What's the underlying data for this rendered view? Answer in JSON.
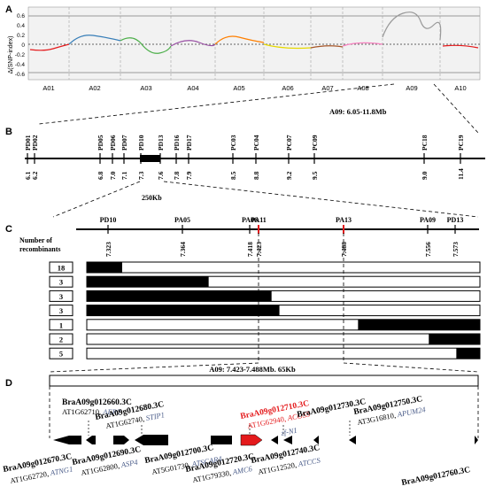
{
  "panelA": {
    "label": "A",
    "ylabel": "Δ(SNP-index)",
    "yticks": [
      "0.6",
      "0.4",
      "0.2",
      "0",
      "-0.2",
      "-0.4",
      "-0.6"
    ],
    "chromosomes": [
      "A01",
      "A02",
      "A03",
      "A04",
      "A05",
      "A06",
      "A07",
      "A08",
      "A09",
      "A10"
    ],
    "region_label": "A09: 6.05-11.8Mb"
  },
  "panelB": {
    "label": "B",
    "markers": [
      {
        "name": "PD01",
        "pos": "6.1"
      },
      {
        "name": "PD02",
        "pos": "6.2"
      },
      {
        "name": "PD05",
        "pos": "6.8"
      },
      {
        "name": "PD06",
        "pos": "7.0"
      },
      {
        "name": "PD07",
        "pos": "7.1"
      },
      {
        "name": "PD10",
        "pos": "7.3"
      },
      {
        "name": "PD13",
        "pos": "7.6"
      },
      {
        "name": "PD16",
        "pos": "7.8"
      },
      {
        "name": "PD17",
        "pos": "7.9"
      },
      {
        "name": "PC03",
        "pos": "8.5"
      },
      {
        "name": "PC04",
        "pos": "8.8"
      },
      {
        "name": "PC07",
        "pos": "9.2"
      },
      {
        "name": "PC09",
        "pos": "9.5"
      },
      {
        "name": "PC18",
        "pos": "9.0"
      },
      {
        "name": "PC19",
        "pos": "11.4"
      }
    ],
    "scale_label": "250Kb"
  },
  "panelC": {
    "label": "C",
    "markers": [
      {
        "name": "PD10",
        "pos": "7.323"
      },
      {
        "name": "PA05",
        "pos": "7.364"
      },
      {
        "name": "PA06",
        "pos": "7.418"
      },
      {
        "name": "PA11",
        "pos": "7.423"
      },
      {
        "name": "PA13",
        "pos": "7.488"
      },
      {
        "name": "PA09",
        "pos": "7.556"
      },
      {
        "name": "PD13",
        "pos": "7.573"
      }
    ],
    "recombinant_header": [
      "Number of",
      "recombinants"
    ],
    "recombinants": [
      {
        "count": "18",
        "fill": 0.09
      },
      {
        "count": "3",
        "fill": 0.31
      },
      {
        "count": "3",
        "fill": 0.47
      },
      {
        "count": "3",
        "fill": 0.49
      },
      {
        "count": "1",
        "fill": 0.31
      },
      {
        "count": "2",
        "fill": 0.13
      },
      {
        "count": "5",
        "fill": 0.06
      }
    ]
  },
  "panelD": {
    "label": "D",
    "region_label": "A09: 7.423-7.488Mb. 65Kb",
    "genes_top": [
      {
        "id": "BraA09g012660.3C",
        "at": "AT1G62710,",
        "name": "AEP2"
      },
      {
        "id": "BraA09g012680.3C",
        "at": "AT1G62740,",
        "name": "STIP1"
      },
      {
        "id": "BraA09g012710.3C",
        "at": "AT1G62940,",
        "name": "ACOS5"
      },
      {
        "id": "BraA09g012730.3C",
        "at": "",
        "name": "zf-N1"
      },
      {
        "id": "BraA09g012750.3C",
        "at": "AT3G16810,",
        "name": "APUM24"
      }
    ],
    "genes_bottom": [
      {
        "id": "BraA09g012670.3C",
        "at": "AT1G62720,",
        "name": "ATNG1"
      },
      {
        "id": "BraA09g012690.3C",
        "at": "AT1G62800,",
        "name": "ASP4"
      },
      {
        "id": "BraA09g012700.3C",
        "at": "AT5G01730,",
        "name": "ATSCAR4"
      },
      {
        "id": "BraA09g012720.3C",
        "at": "AT1G79330,",
        "name": "AMC6"
      },
      {
        "id": "BraA09g012740.3C",
        "at": "AT1G12520,",
        "name": "ATCCS"
      },
      {
        "id": "BraA09g012760.3C",
        "at": "",
        "name": ""
      }
    ]
  },
  "colors": {
    "highlight": "#e41a1c",
    "gene_name": "#4b5d8a"
  }
}
